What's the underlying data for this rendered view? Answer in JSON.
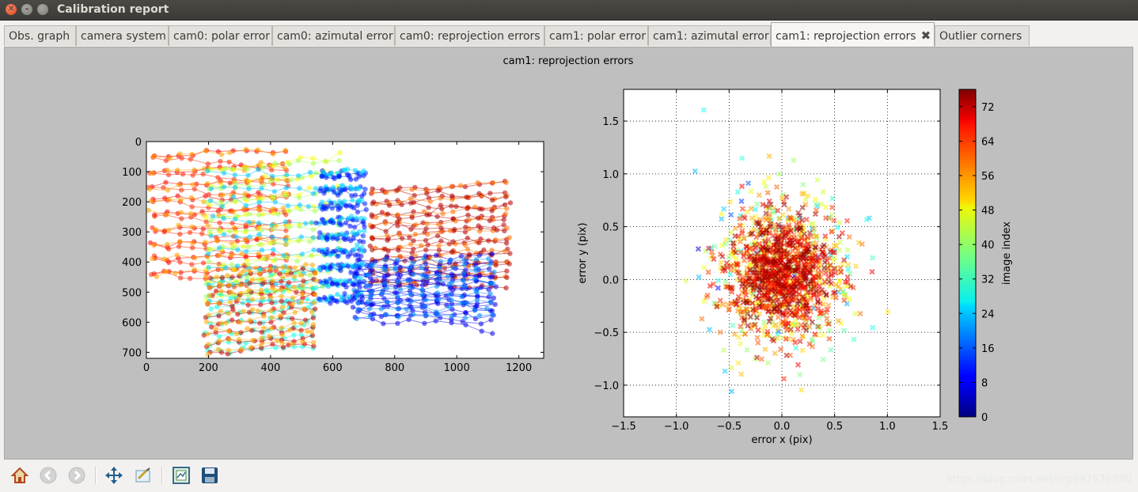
{
  "window": {
    "title": "Calibration report"
  },
  "tabs": [
    {
      "label": "Obs. graph"
    },
    {
      "label": "camera system"
    },
    {
      "label": "cam0: polar error"
    },
    {
      "label": "cam0: azimutal error"
    },
    {
      "label": "cam0: reprojection errors"
    },
    {
      "label": "cam1: polar error"
    },
    {
      "label": "cam1: azimutal error"
    },
    {
      "label": "cam1: reprojection errors",
      "active": true
    },
    {
      "label": "Outlier corners"
    }
  ],
  "figure": {
    "title": "cam1: reprojection errors"
  },
  "toolbar": {
    "buttons": [
      "home-icon",
      "back-icon",
      "forward-icon",
      "pan-icon",
      "zoom-icon",
      "configure-subplots-icon",
      "save-icon"
    ]
  },
  "watermark": "https://blog.csdn.net/crp997576280",
  "colors": {
    "panel_bg": "#bfbfbf",
    "axes_bg": "#ffffff",
    "colormap": "jet"
  },
  "chart_data": [
    {
      "type": "line",
      "description_source": "left subplot: corner tracks across images, colored by image index",
      "xlim": [
        0,
        1280
      ],
      "ylim": [
        720,
        0
      ],
      "xticks": [
        0,
        200,
        400,
        600,
        800,
        1000,
        1200
      ],
      "yticks": [
        0,
        100,
        200,
        300,
        400,
        500,
        600,
        700
      ],
      "xlabel": "",
      "ylabel": "",
      "grid": false,
      "clusters": [
        {
          "x_range": [
            20,
            450
          ],
          "y_range": [
            50,
            440
          ],
          "index_range": [
            50,
            76
          ]
        },
        {
          "x_range": [
            200,
            620
          ],
          "y_range": [
            100,
            520
          ],
          "index_range": [
            24,
            50
          ]
        },
        {
          "x_range": [
            560,
            700
          ],
          "y_range": [
            110,
            520
          ],
          "index_range": [
            10,
            30
          ]
        },
        {
          "x_range": [
            730,
            1160
          ],
          "y_range": [
            170,
            470
          ],
          "index_range": [
            56,
            76
          ]
        },
        {
          "x_range": [
            680,
            1110
          ],
          "y_range": [
            400,
            580
          ],
          "index_range": [
            8,
            20
          ]
        },
        {
          "x_range": [
            200,
            540
          ],
          "y_range": [
            450,
            700
          ],
          "index_range": [
            30,
            76
          ]
        }
      ]
    },
    {
      "type": "scatter",
      "xlabel": "error x (pix)",
      "ylabel": "error y (pix)",
      "xlim": [
        -1.5,
        1.5
      ],
      "ylim": [
        -1.3,
        1.8
      ],
      "xticks": [
        -1.5,
        -1.0,
        -0.5,
        0.0,
        0.5,
        1.0,
        1.5
      ],
      "xtick_labels": [
        "−1.5",
        "−1.0",
        "−0.5",
        "0.0",
        "0.5",
        "1.0",
        "1.5"
      ],
      "yticks": [
        -1.0,
        -0.5,
        0.0,
        0.5,
        1.0,
        1.5
      ],
      "ytick_labels": [
        "−1.0",
        "−0.5",
        "0.0",
        "0.5",
        "1.0",
        "1.5"
      ],
      "grid": true,
      "marker": "x",
      "center": [
        0.0,
        0.05
      ],
      "spread": [
        0.3,
        0.35
      ],
      "colorbar": {
        "label": "image index",
        "min": 0,
        "max": 76,
        "ticks": [
          0,
          8,
          16,
          24,
          32,
          40,
          48,
          56,
          64,
          72
        ],
        "colormap": "jet"
      }
    }
  ]
}
